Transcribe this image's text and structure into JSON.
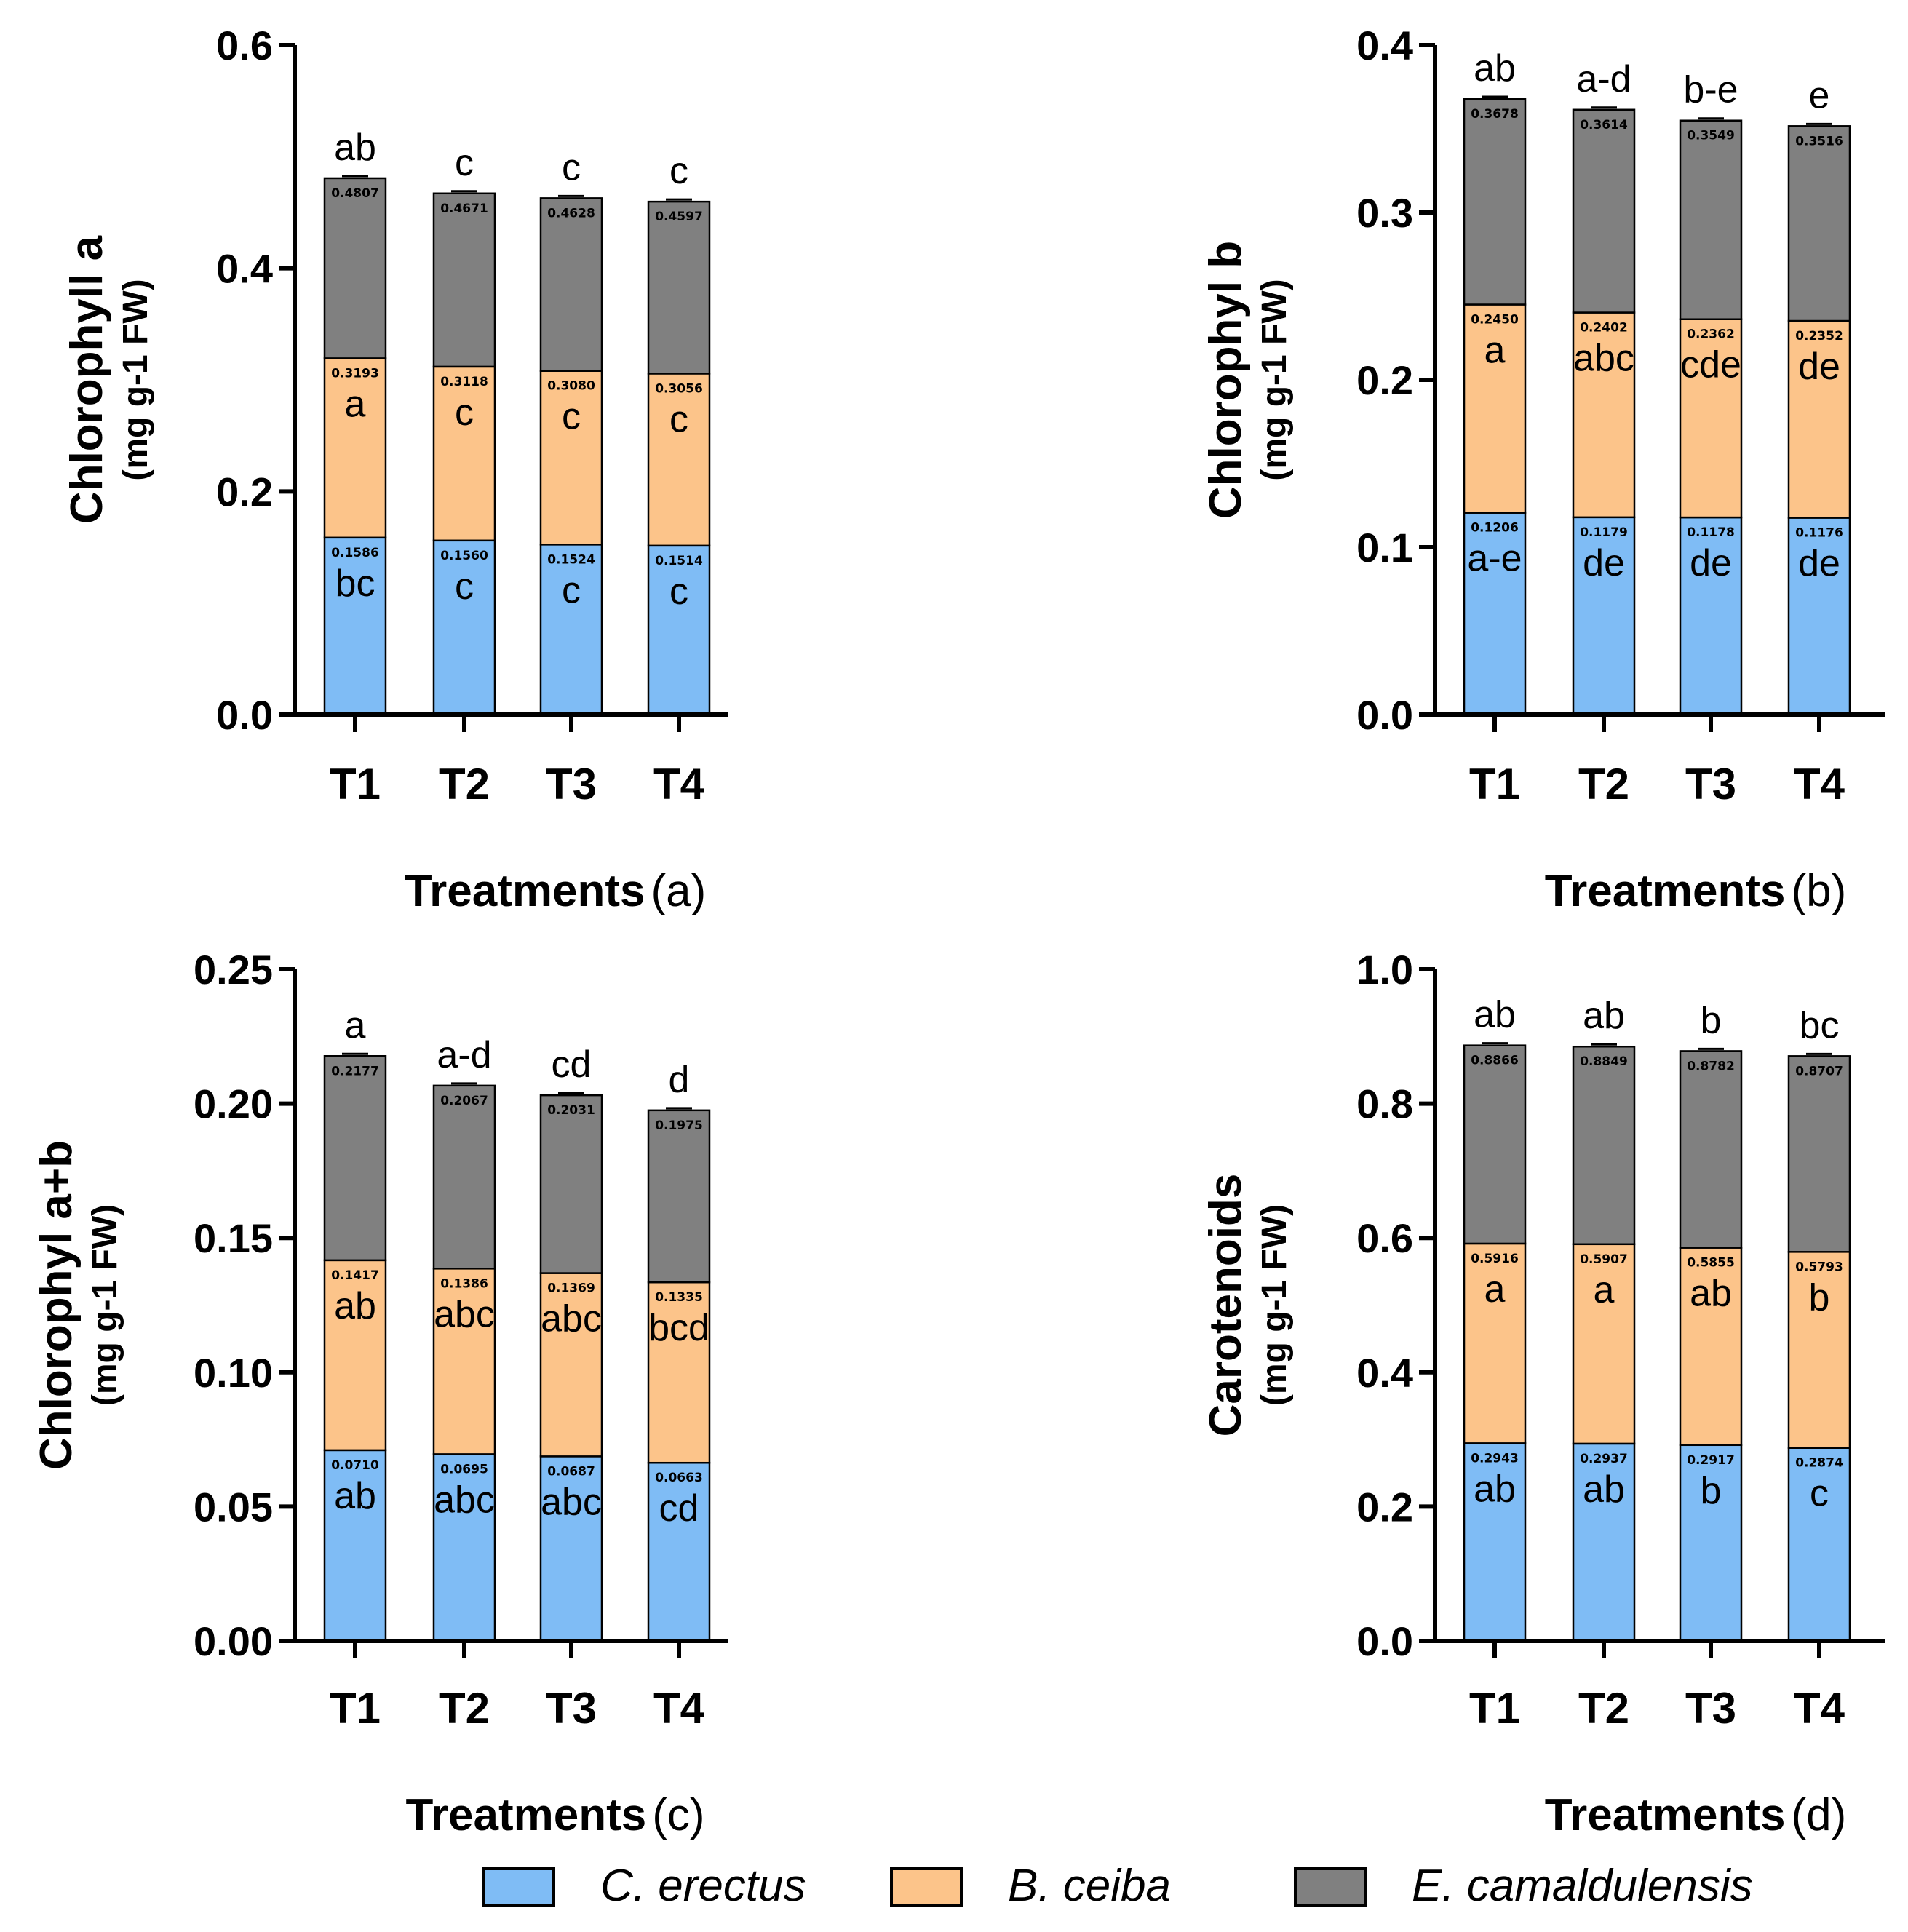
{
  "treatments": [
    "T1",
    "T2",
    "T3",
    "T4"
  ],
  "series_names": [
    "C. erectus",
    "B. ceiba",
    "E. camaldulensis"
  ],
  "colors": {
    "C. erectus": "#7fbcf5",
    "B. ceiba": "#fcc48a",
    "E. camaldulensis": "#808080"
  },
  "chart_data": [
    {
      "id": "a",
      "type": "bar",
      "stacked": true,
      "ylabel": "Chlorophyll a",
      "ylabel_unit": "(mg g-1 FW)",
      "xlabel": "Treatments",
      "panel_label": "(a)",
      "categories": [
        "T1",
        "T2",
        "T3",
        "T4"
      ],
      "ylim": [
        0,
        0.6
      ],
      "ticks": [
        "0.0",
        "0.2",
        "0.4",
        "0.6"
      ],
      "tick_values": [
        0,
        0.2,
        0.4,
        0.6
      ],
      "cumulative": {
        "C. erectus": [
          0.1586,
          0.156,
          0.1524,
          0.1514
        ],
        "B. ceiba": [
          0.3193,
          0.3118,
          0.308,
          0.3056
        ],
        "E. camaldulensis": [
          0.4807,
          0.4671,
          0.4628,
          0.4597
        ]
      },
      "value_labels": {
        "C. erectus": [
          "0.1586",
          "0.1560",
          "0.1524",
          "0.1514"
        ],
        "B. ceiba": [
          "0.3193",
          "0.3118",
          "0.3080",
          "0.3056"
        ],
        "E. camaldulensis": [
          "0.4807",
          "0.4671",
          "0.4628",
          "0.4597"
        ]
      },
      "letters": {
        "C. erectus": [
          "bc",
          "c",
          "c",
          "c"
        ],
        "B. ceiba": [
          "a",
          "c",
          "c",
          "c"
        ],
        "E. camaldulensis": [
          "ab",
          "c",
          "c",
          "c"
        ]
      }
    },
    {
      "id": "b",
      "type": "bar",
      "stacked": true,
      "ylabel": "Chlorophyl b",
      "ylabel_unit": "(mg g-1 FW)",
      "xlabel": "Treatments",
      "panel_label": "(b)",
      "categories": [
        "T1",
        "T2",
        "T3",
        "T4"
      ],
      "ylim": [
        0,
        0.4
      ],
      "ticks": [
        "0.0",
        "0.1",
        "0.2",
        "0.3",
        "0.4"
      ],
      "tick_values": [
        0,
        0.1,
        0.2,
        0.3,
        0.4
      ],
      "cumulative": {
        "C. erectus": [
          0.1206,
          0.1179,
          0.1178,
          0.1176
        ],
        "B. ceiba": [
          0.245,
          0.2402,
          0.2362,
          0.2352
        ],
        "E. camaldulensis": [
          0.3678,
          0.3614,
          0.3549,
          0.3516
        ]
      },
      "value_labels": {
        "C. erectus": [
          "0.1206",
          "0.1179",
          "0.1178",
          "0.1176"
        ],
        "B. ceiba": [
          "0.2450",
          "0.2402",
          "0.2362",
          "0.2352"
        ],
        "E. camaldulensis": [
          "0.3678",
          "0.3614",
          "0.3549",
          "0.3516"
        ]
      },
      "letters": {
        "C. erectus": [
          "a-e",
          "de",
          "de",
          "de"
        ],
        "B. ceiba": [
          "a",
          "abc",
          "cde",
          "de"
        ],
        "E. camaldulensis": [
          "ab",
          "a-d",
          "b-e",
          "e"
        ]
      }
    },
    {
      "id": "c",
      "type": "bar",
      "stacked": true,
      "ylabel": "Chlorophyl a+b",
      "ylabel_unit": "(mg g-1 FW)",
      "xlabel": "Treatments",
      "panel_label": "(c)",
      "categories": [
        "T1",
        "T2",
        "T3",
        "T4"
      ],
      "ylim": [
        0,
        0.25
      ],
      "ticks": [
        "0.00",
        "0.05",
        "0.10",
        "0.15",
        "0.20",
        "0.25"
      ],
      "tick_values": [
        0,
        0.05,
        0.1,
        0.15,
        0.2,
        0.25
      ],
      "cumulative": {
        "C. erectus": [
          0.071,
          0.0695,
          0.0687,
          0.0663
        ],
        "B. ceiba": [
          0.1417,
          0.1386,
          0.1369,
          0.1335
        ],
        "E. camaldulensis": [
          0.2177,
          0.2067,
          0.2031,
          0.1975
        ]
      },
      "value_labels": {
        "C. erectus": [
          "0.0710",
          "0.0695",
          "0.0687",
          "0.0663"
        ],
        "B. ceiba": [
          "0.1417",
          "0.1386",
          "0.1369",
          "0.1335"
        ],
        "E. camaldulensis": [
          "0.2177",
          "0.2067",
          "0.2031",
          "0.1975"
        ]
      },
      "letters": {
        "C. erectus": [
          "ab",
          "abc",
          "abc",
          "cd"
        ],
        "B. ceiba": [
          "ab",
          "abc",
          "abc",
          "bcd"
        ],
        "E. camaldulensis": [
          "a",
          "a-d",
          "cd",
          "d"
        ]
      }
    },
    {
      "id": "d",
      "type": "bar",
      "stacked": true,
      "ylabel": "Carotenoids",
      "ylabel_unit": "(mg g-1 FW)",
      "xlabel": "Treatments",
      "panel_label": "(d)",
      "categories": [
        "T1",
        "T2",
        "T3",
        "T4"
      ],
      "ylim": [
        0,
        1.0
      ],
      "ticks": [
        "0.0",
        "0.2",
        "0.4",
        "0.6",
        "0.8",
        "1.0"
      ],
      "tick_values": [
        0,
        0.2,
        0.4,
        0.6,
        0.8,
        1.0
      ],
      "cumulative": {
        "C. erectus": [
          0.2943,
          0.2937,
          0.2917,
          0.2874
        ],
        "B. ceiba": [
          0.5916,
          0.5907,
          0.5855,
          0.5793
        ],
        "E. camaldulensis": [
          0.8866,
          0.8849,
          0.8782,
          0.8707
        ]
      },
      "value_labels": {
        "C. erectus": [
          "0.2943",
          "0.2937",
          "0.2917",
          "0.2874"
        ],
        "B. ceiba": [
          "0.5916",
          "0.5907",
          "0.5855",
          "0.5793"
        ],
        "E. camaldulensis": [
          "0.8866",
          "0.8849",
          "0.8782",
          "0.8707"
        ]
      },
      "letters": {
        "C. erectus": [
          "ab",
          "ab",
          "b",
          "c"
        ],
        "B. ceiba": [
          "a",
          "a",
          "ab",
          "b"
        ],
        "E. camaldulensis": [
          "ab",
          "ab",
          "b",
          "bc"
        ]
      }
    }
  ],
  "legend": {
    "items": [
      {
        "label": "C. erectus",
        "color": "#7fbcf5"
      },
      {
        "label": "B. ceiba",
        "color": "#fcc48a"
      },
      {
        "label": "E. camaldulensis",
        "color": "#808080"
      }
    ]
  }
}
